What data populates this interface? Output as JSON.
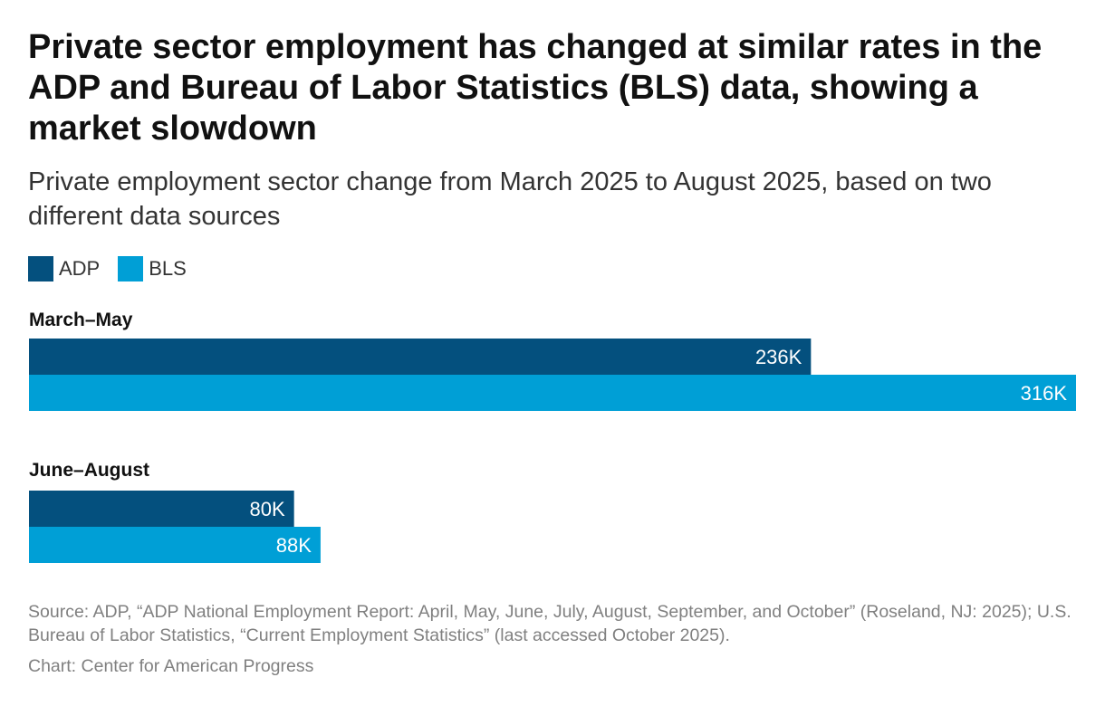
{
  "title": "Private sector employment has changed at similar rates in the ADP and Bureau of Labor Statistics (BLS) data, showing a market slowdown",
  "subtitle": "Private employment sector change from March 2025 to August 2025, based on two different data sources",
  "legend": [
    {
      "label": "ADP",
      "color": "#04507e"
    },
    {
      "label": "BLS",
      "color": "#009fd6"
    }
  ],
  "chart_data": {
    "type": "bar",
    "orientation": "horizontal",
    "categories": [
      "March–May",
      "June–August"
    ],
    "series": [
      {
        "name": "ADP",
        "values": [
          236,
          80
        ],
        "labels": [
          "236K",
          "80K"
        ],
        "color": "#04507e"
      },
      {
        "name": "BLS",
        "values": [
          316,
          88
        ],
        "labels": [
          "316K",
          "88K"
        ],
        "color": "#009fd6"
      }
    ],
    "xlim": [
      0,
      316
    ],
    "grid": false,
    "legend_position": "top-left"
  },
  "source": "Source: ADP, “ADP National Employment Report: April, May, June, July, August, September, and October” (Roseland, NJ: 2025); U.S. Bureau of Labor Statistics, “Current Employment Statistics” (last accessed October 2025).",
  "credit": "Chart: Center for American Progress"
}
